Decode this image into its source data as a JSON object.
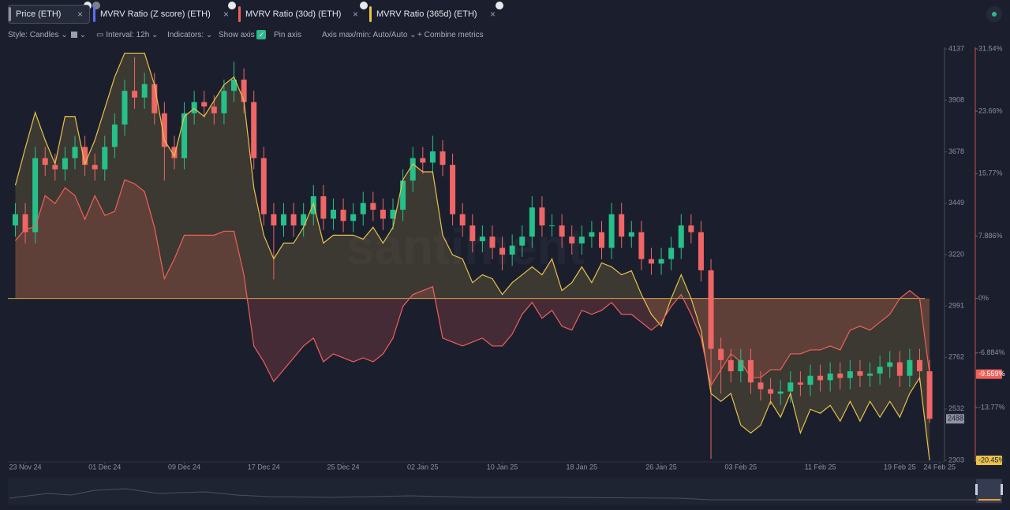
{
  "toolbar": {
    "style": "Style: Candles",
    "interval": "Interval: 12h",
    "indicators": "Indicators:",
    "show_axis": "Show axis",
    "pin_axis": "Pin axis",
    "axis_minmax": "Axis max/min: Auto/Auto",
    "combine": "Combine metrics"
  },
  "watermark": "santiment",
  "chart_data": {
    "type": "candlestick",
    "xlim": [
      -1.75,
      92.5
    ],
    "xticks": [
      {
        "value": 0,
        "label": "23 Nov 24"
      },
      {
        "value": 8,
        "label": "01 Dec 24"
      },
      {
        "value": 16,
        "label": "09 Dec 24"
      },
      {
        "value": 24,
        "label": "17 Dec 24"
      },
      {
        "value": 32,
        "label": "25 Dec 24"
      },
      {
        "value": 40,
        "label": "02 Jan 25"
      },
      {
        "value": 48,
        "label": "10 Jan 25"
      },
      {
        "value": 56,
        "label": "18 Jan 25"
      },
      {
        "value": 64,
        "label": "26 Jan 25"
      },
      {
        "value": 72,
        "label": "03 Feb 25"
      },
      {
        "value": 80,
        "label": "11 Feb 25"
      },
      {
        "value": 88,
        "label": "19 Feb 25"
      },
      {
        "value": 92,
        "label": "24 Feb 25"
      }
    ],
    "ylim": [
      2303,
      4137
    ],
    "yticks": [
      4137,
      3908,
      3678,
      3449,
      3220,
      2991,
      2762,
      2532,
      2303
    ],
    "y2lim": [
      -20.45,
      31.54
    ],
    "y2ticks": [
      {
        "value": 31.54,
        "label": "31.54%"
      },
      {
        "value": 23.66,
        "label": "23.66%"
      },
      {
        "value": 15.77,
        "label": "15.77%"
      },
      {
        "value": 7.886,
        "label": "7.886%"
      },
      {
        "value": 0,
        "label": "0%"
      },
      {
        "value": -6.884,
        "label": "-6.884%"
      },
      {
        "value": -13.77,
        "label": "-13.77%"
      },
      {
        "value": -20.45,
        "label": "-20.45%"
      }
    ],
    "x": [
      -1,
      0,
      1,
      2,
      3,
      4,
      5,
      6,
      7,
      8,
      9,
      10,
      11,
      12,
      13,
      14,
      15,
      16,
      17,
      18,
      19,
      20,
      21,
      22,
      23,
      24,
      25,
      26,
      27,
      28,
      29,
      30,
      31,
      32,
      33,
      34,
      35,
      36,
      37,
      38,
      39,
      40,
      41,
      42,
      43,
      44,
      45,
      46,
      47,
      48,
      49,
      50,
      51,
      52,
      53,
      54,
      55,
      56,
      57,
      58,
      59,
      60,
      61,
      62,
      63,
      64,
      65,
      66,
      67,
      68,
      69,
      70,
      71,
      72,
      73,
      74,
      75,
      76,
      77,
      78,
      79,
      80,
      81,
      82,
      83,
      84,
      85,
      86,
      87,
      88,
      89,
      90,
      91
    ],
    "series": [
      {
        "name": "Price (ETH)",
        "type": "candlestick",
        "color": "#8d93a3",
        "up_color": "#26c08a",
        "down_color": "#f06565",
        "open": [
          3350,
          3400,
          3320,
          3650,
          3620,
          3600,
          3650,
          3700,
          3620,
          3600,
          3700,
          3800,
          3950,
          3920,
          3980,
          3850,
          3700,
          3650,
          3850,
          3900,
          3880,
          3850,
          3950,
          4000,
          3900,
          3650,
          3400,
          3350,
          3400,
          3350,
          3400,
          3480,
          3380,
          3420,
          3370,
          3400,
          3450,
          3420,
          3380,
          3420,
          3550,
          3650,
          3630,
          3680,
          3620,
          3400,
          3350,
          3280,
          3300,
          3250,
          3220,
          3260,
          3300,
          3430,
          3350,
          3350,
          3300,
          3270,
          3300,
          3320,
          3250,
          3400,
          3300,
          3320,
          3200,
          3180,
          3200,
          3250,
          3350,
          3320,
          3150,
          2800,
          2750,
          2700,
          2750,
          2650,
          2620,
          2600,
          2610,
          2650,
          2640,
          2680,
          2660,
          2690,
          2670,
          2700,
          2680,
          2690,
          2720,
          2740,
          2680,
          2750,
          2700
        ],
        "high": [
          3450,
          3450,
          3700,
          3700,
          3670,
          3700,
          3750,
          3750,
          3670,
          3750,
          3850,
          4000,
          4100,
          4030,
          4030,
          3900,
          3750,
          3900,
          3950,
          3950,
          3930,
          4000,
          4080,
          4050,
          3950,
          3700,
          3450,
          3450,
          3450,
          3450,
          3530,
          3530,
          3470,
          3470,
          3450,
          3500,
          3500,
          3470,
          3470,
          3600,
          3700,
          3700,
          3750,
          3730,
          3670,
          3450,
          3400,
          3350,
          3350,
          3300,
          3310,
          3350,
          3480,
          3480,
          3400,
          3400,
          3350,
          3350,
          3370,
          3370,
          3450,
          3450,
          3370,
          3370,
          3250,
          3250,
          3300,
          3400,
          3400,
          3370,
          3200,
          2850,
          2800,
          2800,
          2800,
          2700,
          2670,
          2660,
          2700,
          2700,
          2730,
          2730,
          2740,
          2740,
          2750,
          2750,
          2740,
          2770,
          2790,
          2790,
          2800,
          2800,
          2750
        ],
        "low": [
          3300,
          3270,
          3270,
          3570,
          3550,
          3550,
          3600,
          3570,
          3550,
          3550,
          3650,
          3750,
          3870,
          3870,
          3800,
          3550,
          3600,
          3600,
          3800,
          3830,
          3800,
          3800,
          3900,
          3850,
          3600,
          3350,
          3110,
          3300,
          3300,
          3300,
          3350,
          3330,
          3330,
          3320,
          3320,
          3350,
          3370,
          3330,
          3330,
          3370,
          3500,
          3580,
          3580,
          3570,
          3350,
          3300,
          3230,
          3230,
          3200,
          3150,
          3170,
          3210,
          3250,
          3300,
          3300,
          3250,
          3220,
          3220,
          3250,
          3200,
          3200,
          3250,
          3250,
          3150,
          3130,
          3130,
          3150,
          3200,
          3270,
          3100,
          2310,
          2600,
          2650,
          2650,
          2600,
          2570,
          2550,
          2550,
          2560,
          2590,
          2590,
          2610,
          2610,
          2620,
          2620,
          2630,
          2630,
          2640,
          2670,
          2630,
          2630,
          2650,
          2470
        ],
        "close": [
          3400,
          3320,
          3650,
          3620,
          3600,
          3650,
          3700,
          3620,
          3600,
          3700,
          3800,
          3950,
          3920,
          3980,
          3850,
          3700,
          3650,
          3850,
          3900,
          3880,
          3850,
          3950,
          4000,
          3900,
          3650,
          3400,
          3350,
          3400,
          3350,
          3400,
          3480,
          3380,
          3420,
          3370,
          3400,
          3450,
          3420,
          3380,
          3420,
          3550,
          3650,
          3630,
          3680,
          3620,
          3400,
          3350,
          3280,
          3300,
          3250,
          3220,
          3260,
          3300,
          3430,
          3350,
          3350,
          3300,
          3270,
          3300,
          3320,
          3250,
          3400,
          3300,
          3320,
          3200,
          3180,
          3200,
          3250,
          3350,
          3320,
          3150,
          2800,
          2750,
          2700,
          2750,
          2650,
          2620,
          2600,
          2610,
          2650,
          2640,
          2680,
          2660,
          2690,
          2670,
          2700,
          2680,
          2690,
          2720,
          2740,
          2680,
          2750,
          2700,
          2488
        ]
      },
      {
        "name": "MVRV Ratio (Z score) (ETH)",
        "color": "#5b6ff0",
        "hidden": true
      },
      {
        "name": "MVRV Ratio (30d) (ETH)",
        "type": "area",
        "axis": "y2",
        "color": "#f0605a",
        "last_label": "-9.559%",
        "values": [
          7.3,
          8.8,
          9,
          13,
          12,
          14,
          13,
          10,
          13,
          10.5,
          11,
          15,
          14.5,
          13.5,
          9,
          2.5,
          5,
          8,
          8,
          8,
          8,
          8.5,
          8.5,
          3,
          -6,
          -8,
          -10.5,
          -9,
          -7.5,
          -6,
          -5,
          -8,
          -7,
          -7.5,
          -8,
          -7.5,
          -8,
          -7,
          -5,
          -1,
          0.5,
          1,
          1.5,
          -5,
          -5.5,
          -6,
          -5.5,
          -5,
          -6,
          -6,
          -4.5,
          -2,
          -0.5,
          -2.5,
          -1.5,
          -3.5,
          -4,
          -1.5,
          -2,
          -1.5,
          -0.5,
          -2,
          -2,
          -3,
          -4,
          -3,
          -1,
          0.5,
          -2,
          -5,
          -11,
          -9,
          -7,
          -8,
          -10,
          -10,
          -9,
          -9,
          -7,
          -7,
          -6.5,
          -6.5,
          -6,
          -6.5,
          -4,
          -3.5,
          -4,
          -3,
          -2,
          0,
          1,
          0,
          -9.559
        ]
      },
      {
        "name": "MVRV Ratio (365d) (ETH)",
        "type": "area",
        "axis": "y2",
        "color": "#e8c24a",
        "last_label": "-20.45%",
        "values": [
          14.3,
          19,
          23.5,
          20,
          17,
          23,
          23,
          17,
          20,
          24,
          28,
          31,
          31,
          31,
          27,
          20,
          18,
          23,
          24,
          23,
          25,
          27,
          28,
          25,
          14,
          8,
          5,
          7,
          7,
          9,
          12,
          7,
          8,
          8,
          8,
          7.5,
          9,
          7,
          9,
          15,
          17,
          16,
          16,
          8,
          5.5,
          5,
          2,
          3,
          2.5,
          0.5,
          2,
          3,
          4,
          3,
          5,
          1,
          2,
          4,
          2,
          4.5,
          4,
          3,
          3.5,
          0.5,
          -2,
          -3.5,
          0,
          3,
          0,
          -4,
          -12,
          -13,
          -12,
          -16,
          -17,
          -16,
          -13,
          -15,
          -12,
          -17,
          -14,
          -14.5,
          -13.5,
          -15.5,
          -13,
          -15.5,
          -13,
          -15,
          -13,
          -15,
          -12,
          -10,
          -20.45
        ]
      }
    ]
  }
}
